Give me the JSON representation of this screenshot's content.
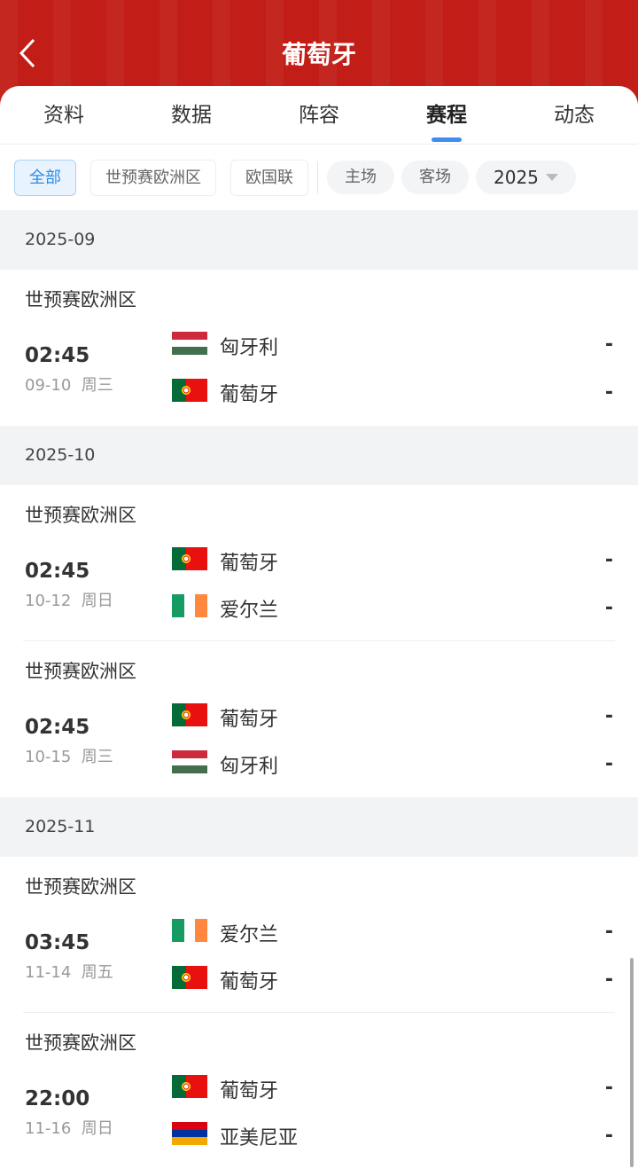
{
  "header": {
    "title": "葡萄牙",
    "back_icon": "chevron-left-icon"
  },
  "tabs": [
    {
      "label": "资料"
    },
    {
      "label": "数据"
    },
    {
      "label": "阵容"
    },
    {
      "label": "赛程",
      "active": true
    },
    {
      "label": "动态"
    }
  ],
  "filters": {
    "competitions": [
      "全部",
      "世预赛欧洲区",
      "欧国联"
    ],
    "selected": "全部",
    "venues": [
      "主场",
      "客场"
    ],
    "year": "2025"
  },
  "colors": {
    "header": "#c21d17",
    "accent": "#3d8ef0"
  },
  "months": [
    {
      "label": "2025-09",
      "matches": [
        {
          "competition": "世预赛欧洲区",
          "time": "02:45",
          "date": "09-10  周三",
          "home": {
            "name": "匈牙利",
            "flag": "hungary"
          },
          "away": {
            "name": "葡萄牙",
            "flag": "portugal"
          },
          "home_score": "-",
          "away_score": "-"
        }
      ]
    },
    {
      "label": "2025-10",
      "matches": [
        {
          "competition": "世预赛欧洲区",
          "time": "02:45",
          "date": "10-12  周日",
          "home": {
            "name": "葡萄牙",
            "flag": "portugal"
          },
          "away": {
            "name": "爱尔兰",
            "flag": "ireland"
          },
          "home_score": "-",
          "away_score": "-"
        },
        {
          "competition": "世预赛欧洲区",
          "time": "02:45",
          "date": "10-15  周三",
          "home": {
            "name": "葡萄牙",
            "flag": "portugal"
          },
          "away": {
            "name": "匈牙利",
            "flag": "hungary"
          },
          "home_score": "-",
          "away_score": "-"
        }
      ]
    },
    {
      "label": "2025-11",
      "matches": [
        {
          "competition": "世预赛欧洲区",
          "time": "03:45",
          "date": "11-14  周五",
          "home": {
            "name": "爱尔兰",
            "flag": "ireland"
          },
          "away": {
            "name": "葡萄牙",
            "flag": "portugal"
          },
          "home_score": "-",
          "away_score": "-"
        },
        {
          "competition": "世预赛欧洲区",
          "time": "22:00",
          "date": "11-16  周日",
          "home": {
            "name": "葡萄牙",
            "flag": "portugal"
          },
          "away": {
            "name": "亚美尼亚",
            "flag": "armenia"
          },
          "home_score": "-",
          "away_score": "-"
        }
      ]
    }
  ]
}
